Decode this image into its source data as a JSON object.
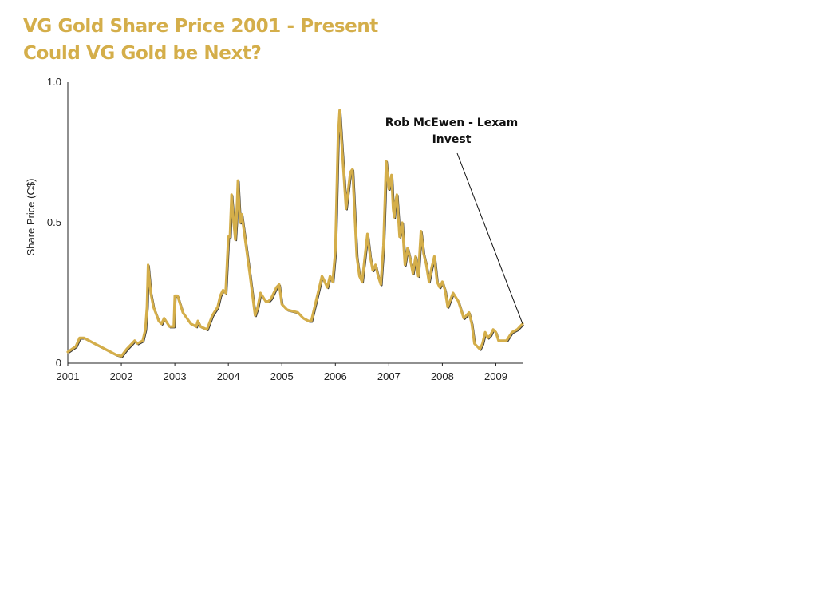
{
  "chart_data": {
    "type": "line",
    "title": "VG Gold Share Price 2001 - Present",
    "subtitle": "Could VG Gold be Next?",
    "xlabel": "",
    "ylabel": "Share Price (C$)",
    "xlim": [
      2001,
      2009.5
    ],
    "ylim": [
      0,
      1.0
    ],
    "x_ticks": [
      "2001",
      "2002",
      "2003",
      "2004",
      "2005",
      "2006",
      "2007",
      "2008",
      "2009"
    ],
    "y_ticks": [
      "0",
      "0.5",
      "1.0"
    ],
    "grid": false,
    "legend": "none",
    "line_color": "#d4ae4a",
    "annotation": {
      "lines": [
        "Rob McEwen - Lexam",
        "Invest"
      ],
      "x": 2009.5,
      "y": 0.14
    },
    "series": [
      {
        "x": [
          2001.0,
          2001.15,
          2001.22,
          2001.3,
          2001.5,
          2001.7,
          2001.9,
          2002.0,
          2002.1,
          2002.2,
          2002.25,
          2002.3,
          2002.4,
          2002.45,
          2002.48,
          2002.5,
          2002.55,
          2002.6,
          2002.7,
          2002.75,
          2002.8,
          2002.9,
          2002.98,
          2003.0,
          2003.05,
          2003.15,
          2003.3,
          2003.4,
          2003.43,
          2003.48,
          2003.6,
          2003.7,
          2003.8,
          2003.85,
          2003.9,
          2003.95,
          2004.0,
          2004.03,
          2004.06,
          2004.1,
          2004.13,
          2004.15,
          2004.18,
          2004.22,
          2004.25,
          2004.3,
          2004.4,
          2004.5,
          2004.55,
          2004.6,
          2004.7,
          2004.75,
          2004.8,
          2004.9,
          2004.95,
          2005.0,
          2005.1,
          2005.3,
          2005.4,
          2005.5,
          2005.55,
          2005.7,
          2005.75,
          2005.8,
          2005.85,
          2005.9,
          2005.95,
          2006.0,
          2006.05,
          2006.08,
          2006.12,
          2006.2,
          2006.28,
          2006.32,
          2006.4,
          2006.45,
          2006.5,
          2006.6,
          2006.65,
          2006.7,
          2006.75,
          2006.8,
          2006.85,
          2006.9,
          2006.95,
          2007.0,
          2007.05,
          2007.08,
          2007.1,
          2007.12,
          2007.15,
          2007.2,
          2007.25,
          2007.3,
          2007.35,
          2007.4,
          2007.45,
          2007.5,
          2007.55,
          2007.6,
          2007.65,
          2007.7,
          2007.75,
          2007.8,
          2007.85,
          2007.9,
          2007.95,
          2008.0,
          2008.05,
          2008.1,
          2008.2,
          2008.3,
          2008.4,
          2008.5,
          2008.55,
          2008.6,
          2008.7,
          2008.75,
          2008.8,
          2008.85,
          2008.9,
          2008.95,
          2009.0,
          2009.05,
          2009.1,
          2009.2,
          2009.3,
          2009.4,
          2009.5
        ],
        "y": [
          0.04,
          0.06,
          0.09,
          0.09,
          0.07,
          0.05,
          0.03,
          0.025,
          0.05,
          0.07,
          0.08,
          0.07,
          0.08,
          0.12,
          0.2,
          0.35,
          0.25,
          0.2,
          0.15,
          0.14,
          0.16,
          0.13,
          0.13,
          0.24,
          0.24,
          0.18,
          0.14,
          0.13,
          0.15,
          0.13,
          0.12,
          0.17,
          0.2,
          0.24,
          0.26,
          0.25,
          0.45,
          0.45,
          0.6,
          0.5,
          0.44,
          0.5,
          0.65,
          0.5,
          0.53,
          0.46,
          0.32,
          0.17,
          0.2,
          0.25,
          0.22,
          0.22,
          0.23,
          0.27,
          0.28,
          0.21,
          0.19,
          0.18,
          0.16,
          0.15,
          0.15,
          0.27,
          0.31,
          0.29,
          0.27,
          0.31,
          0.29,
          0.4,
          0.8,
          0.9,
          0.78,
          0.55,
          0.68,
          0.69,
          0.38,
          0.31,
          0.29,
          0.46,
          0.38,
          0.33,
          0.35,
          0.31,
          0.28,
          0.42,
          0.72,
          0.62,
          0.67,
          0.55,
          0.52,
          0.57,
          0.6,
          0.45,
          0.5,
          0.35,
          0.41,
          0.37,
          0.32,
          0.38,
          0.31,
          0.47,
          0.39,
          0.35,
          0.29,
          0.34,
          0.38,
          0.29,
          0.27,
          0.29,
          0.26,
          0.2,
          0.25,
          0.22,
          0.16,
          0.18,
          0.14,
          0.07,
          0.05,
          0.07,
          0.11,
          0.09,
          0.1,
          0.12,
          0.11,
          0.08,
          0.08,
          0.08,
          0.11,
          0.12,
          0.14
        ]
      }
    ]
  }
}
